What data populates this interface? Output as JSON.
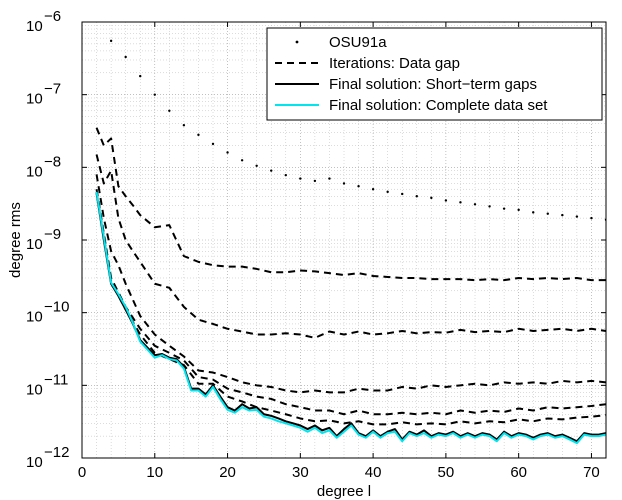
{
  "chart_data": {
    "type": "line",
    "title": "",
    "xlabel": "degree  l",
    "ylabel": "degree rms",
    "xlim": [
      0,
      72
    ],
    "ylim": [
      1e-12,
      1e-06
    ],
    "yscale": "log",
    "grid": true,
    "legend_position": "top-right",
    "x_ticks": [
      0,
      10,
      20,
      30,
      40,
      50,
      60,
      70
    ],
    "y_ticks": [
      {
        "value": 1e-12,
        "base": "10",
        "exp": "−12"
      },
      {
        "value": 1e-11,
        "base": "10",
        "exp": "−11"
      },
      {
        "value": 1e-10,
        "base": "10",
        "exp": "−10"
      },
      {
        "value": 1e-09,
        "base": "10",
        "exp": "−9"
      },
      {
        "value": 1e-08,
        "base": "10",
        "exp": "−8"
      },
      {
        "value": 1e-07,
        "base": "10",
        "exp": "−7"
      },
      {
        "value": 1e-06,
        "base": "10",
        "exp": "−6"
      }
    ],
    "series": [
      {
        "name": "OSU91a",
        "style": "dotted",
        "color": "#000000",
        "x": [
          4,
          6,
          8,
          10,
          12,
          14,
          16,
          18,
          20,
          22,
          24,
          26,
          28,
          30,
          32,
          34,
          36,
          38,
          40,
          42,
          44,
          46,
          48,
          50,
          52,
          54,
          56,
          58,
          60,
          62,
          64,
          66,
          68,
          70,
          72
        ],
        "y": [
          5.5e-07,
          3.3e-07,
          1.8e-07,
          1e-07,
          6e-08,
          3.8e-08,
          2.8e-08,
          2.1e-08,
          1.6e-08,
          1.25e-08,
          1.05e-08,
          9e-09,
          7.8e-09,
          7e-09,
          6.5e-09,
          7e-09,
          6e-09,
          5.5e-09,
          5e-09,
          4.6e-09,
          4.3e-09,
          4e-09,
          3.8e-09,
          3.5e-09,
          3.3e-09,
          3.1e-09,
          2.9e-09,
          2.7e-09,
          2.6e-09,
          2.4e-09,
          2.3e-09,
          2.2e-09,
          2.1e-09,
          2e-09,
          1.9e-09
        ]
      },
      {
        "name": "Iterations: Data gap",
        "style": "dashed",
        "color": "#000000",
        "x": [
          2,
          3,
          4,
          5,
          6,
          7,
          8,
          10,
          12,
          14,
          16,
          18,
          20,
          22,
          24,
          26,
          28,
          30,
          32,
          34,
          36,
          38,
          40,
          42,
          44,
          46,
          48,
          50,
          52,
          54,
          56,
          58,
          60,
          62,
          64,
          66,
          68,
          70,
          72
        ],
        "y": [
          3.5e-08,
          2e-08,
          2.5e-08,
          5.5e-09,
          4e-09,
          3e-09,
          2.2e-09,
          1.5e-09,
          1.6e-09,
          6e-10,
          5e-10,
          4.5e-10,
          4.3e-10,
          4.3e-10,
          4e-10,
          3.6e-10,
          3.6e-10,
          3.8e-10,
          3.7e-10,
          3.5e-10,
          3.3e-10,
          3.5e-10,
          3.2e-10,
          3.1e-10,
          3e-10,
          3e-10,
          2.9e-10,
          2.9e-10,
          2.9e-10,
          2.8e-10,
          2.9e-10,
          2.8e-10,
          3e-10,
          2.9e-10,
          3e-10,
          2.9e-10,
          3e-10,
          2.8e-10,
          2.8e-10
        ]
      },
      {
        "name": "",
        "style": "dashed",
        "color": "#000000",
        "x": [
          2,
          3,
          4,
          5,
          6,
          7,
          8,
          10,
          12,
          14,
          16,
          18,
          20,
          22,
          24,
          26,
          28,
          30,
          32,
          34,
          36,
          38,
          40,
          42,
          44,
          46,
          48,
          50,
          52,
          54,
          56,
          58,
          60,
          62,
          64,
          66,
          68,
          70,
          72
        ],
        "y": [
          1.5e-08,
          6e-09,
          9e-09,
          2e-09,
          1e-09,
          7e-10,
          5e-10,
          2.5e-10,
          2.2e-10,
          1.2e-10,
          8e-11,
          7e-11,
          6e-11,
          5.5e-11,
          5e-11,
          5e-11,
          5.2e-11,
          5e-11,
          4.5e-11,
          5.5e-11,
          5e-11,
          5.5e-11,
          5e-11,
          5.2e-11,
          5.6e-11,
          5.2e-11,
          5.4e-11,
          5.3e-11,
          5.8e-11,
          5.4e-11,
          5.6e-11,
          5.4e-11,
          6e-11,
          5.6e-11,
          5.8e-11,
          6e-11,
          5.6e-11,
          6e-11,
          5.6e-11
        ]
      },
      {
        "name": "",
        "style": "dashed",
        "color": "#000000",
        "x": [
          2,
          3,
          4,
          5,
          6,
          7,
          8,
          10,
          12,
          14,
          16,
          18,
          20,
          22,
          24,
          26,
          28,
          30,
          32,
          34,
          36,
          38,
          40,
          42,
          44,
          46,
          48,
          50,
          52,
          54,
          56,
          58,
          60,
          62,
          64,
          66,
          68,
          70,
          72
        ],
        "y": [
          8e-09,
          2e-09,
          7e-10,
          4.5e-10,
          2.5e-10,
          1.5e-10,
          9e-11,
          5e-11,
          3.5e-11,
          2.5e-11,
          1.6e-11,
          1.5e-11,
          1.3e-11,
          1.1e-11,
          1e-11,
          9.5e-12,
          8.5e-12,
          8e-12,
          8.5e-12,
          8e-12,
          8e-12,
          9e-12,
          8.5e-12,
          8.5e-12,
          9.5e-12,
          9e-12,
          1e-11,
          9.5e-12,
          1e-11,
          1.05e-11,
          1e-11,
          1.1e-11,
          1.05e-11,
          1.1e-11,
          1.05e-11,
          1.15e-11,
          1.1e-11,
          1.15e-11,
          1.1e-11
        ]
      },
      {
        "name": "",
        "style": "dashed",
        "color": "#000000",
        "x": [
          2,
          4,
          6,
          8,
          10,
          12,
          14,
          16,
          18,
          20,
          22,
          24,
          26,
          28,
          30,
          32,
          34,
          36,
          38,
          40,
          42,
          44,
          46,
          48,
          50,
          52,
          54,
          56,
          58,
          60,
          62,
          64,
          66,
          68,
          70,
          72
        ],
        "y": [
          5e-09,
          3e-10,
          1.2e-10,
          6e-11,
          3.5e-11,
          2.8e-11,
          2.2e-11,
          1.3e-11,
          1.2e-11,
          9e-12,
          8e-12,
          7e-12,
          6.5e-12,
          5.5e-12,
          5e-12,
          4.5e-12,
          4.5e-12,
          4e-12,
          4.5e-12,
          4e-12,
          4e-12,
          4.2e-12,
          4e-12,
          4.2e-12,
          4e-12,
          4.5e-12,
          4.2e-12,
          4.5e-12,
          4.3e-12,
          4.8e-12,
          4.5e-12,
          5e-12,
          4.8e-12,
          5e-12,
          5.2e-12,
          5.5e-12
        ]
      },
      {
        "name": "",
        "style": "dashed",
        "color": "#000000",
        "x": [
          2,
          4,
          6,
          8,
          10,
          12,
          14,
          16,
          18,
          20,
          22,
          24,
          26,
          28,
          30,
          32,
          34,
          36,
          38,
          40,
          42,
          44,
          46,
          48,
          50,
          52,
          54,
          56,
          58,
          60,
          62,
          64,
          66,
          68,
          70,
          72
        ],
        "y": [
          4.6e-09,
          2.7e-10,
          1.1e-10,
          5e-11,
          2.8e-11,
          2.3e-11,
          1.9e-11,
          1.05e-11,
          1.05e-11,
          7e-12,
          6e-12,
          5e-12,
          4.5e-12,
          4e-12,
          3.5e-12,
          3.2e-12,
          3.3e-12,
          3e-12,
          3.2e-12,
          2.9e-12,
          2.9e-12,
          3.1e-12,
          2.9e-12,
          3e-12,
          2.9e-12,
          3.2e-12,
          3e-12,
          3.2e-12,
          3.1e-12,
          3.4e-12,
          3.2e-12,
          3.5e-12,
          3.4e-12,
          3.6e-12,
          3.7e-12,
          3.9e-12
        ]
      },
      {
        "name": "Final solution: Short−term gaps",
        "style": "solid",
        "color": "#000000",
        "x": [
          2,
          3,
          4,
          5,
          6,
          7,
          8,
          9,
          10,
          11,
          12,
          13,
          14,
          15,
          16,
          17,
          18,
          19,
          20,
          21,
          22,
          23,
          24,
          25,
          26,
          27,
          28,
          29,
          30,
          31,
          32,
          33,
          34,
          35,
          36,
          37,
          38,
          39,
          40,
          41,
          42,
          43,
          44,
          45,
          46,
          47,
          48,
          49,
          50,
          51,
          52,
          53,
          54,
          55,
          56,
          57,
          58,
          59,
          60,
          61,
          62,
          63,
          64,
          65,
          66,
          67,
          68,
          69,
          70,
          71,
          72
        ],
        "y": [
          4.4e-09,
          1e-09,
          2.5e-10,
          1.7e-10,
          1.1e-10,
          7e-11,
          4.2e-11,
          3.3e-11,
          2.6e-11,
          2.7e-11,
          2.4e-11,
          2.3e-11,
          1.8e-11,
          9e-12,
          9e-12,
          7.5e-12,
          1e-11,
          7e-12,
          5e-12,
          4.5e-12,
          5.5e-12,
          4.8e-12,
          5e-12,
          4e-12,
          3.8e-12,
          3.5e-12,
          3.2e-12,
          3e-12,
          2.8e-12,
          2.5e-12,
          2.8e-12,
          2.4e-12,
          2.6e-12,
          2e-12,
          2.5e-12,
          3e-12,
          2.2e-12,
          2e-12,
          2.4e-12,
          2e-12,
          2.3e-12,
          2.5e-12,
          1.8e-12,
          2.3e-12,
          2.1e-12,
          2.4e-12,
          2e-12,
          2.2e-12,
          2.1e-12,
          2.3e-12,
          2e-12,
          2.2e-12,
          2e-12,
          2.2e-12,
          2.1e-12,
          1.8e-12,
          2.3e-12,
          2e-12,
          2.2e-12,
          2.1e-12,
          1.9e-12,
          2.1e-12,
          2.2e-12,
          2e-12,
          2.1e-12,
          1.9e-12,
          1.7e-12,
          2.2e-12,
          2.1e-12,
          2.1e-12,
          2.2e-12
        ]
      },
      {
        "name": "Final solution: Complete data set",
        "style": "solid",
        "color": "#00e5ee",
        "x": [
          2,
          3,
          4,
          5,
          6,
          7,
          8,
          9,
          10,
          11,
          12,
          13,
          14,
          15,
          16,
          17,
          18,
          19,
          20,
          21,
          22,
          23,
          24,
          25,
          26,
          27,
          28,
          29,
          30,
          31,
          32,
          33,
          34,
          35,
          36,
          37,
          38,
          39,
          40,
          41,
          42,
          43,
          44,
          45,
          46,
          47,
          48,
          49,
          50,
          51,
          52,
          53,
          54,
          55,
          56,
          57,
          58,
          59,
          60,
          61,
          62,
          63,
          64,
          65,
          66,
          67,
          68,
          69,
          70,
          71,
          72
        ],
        "y": [
          4.6e-09,
          1.1e-09,
          2.6e-10,
          1.8e-10,
          1.2e-10,
          7.2e-11,
          4e-11,
          3.1e-11,
          2.4e-11,
          2.6e-11,
          2.3e-11,
          2.2e-11,
          1.7e-11,
          8.5e-12,
          8.5e-12,
          7e-12,
          9.5e-12,
          6.5e-12,
          4.6e-12,
          4.2e-12,
          5e-12,
          4.5e-12,
          4.6e-12,
          3.7e-12,
          3.5e-12,
          3.2e-12,
          3e-12,
          2.8e-12,
          2.6e-12,
          2.3e-12,
          2.6e-12,
          2.2e-12,
          2.4e-12,
          1.9e-12,
          2.3e-12,
          2.8e-12,
          2.1e-12,
          1.9e-12,
          2.3e-12,
          1.9e-12,
          2.2e-12,
          2.3e-12,
          1.7e-12,
          2.2e-12,
          2e-12,
          2.2e-12,
          1.9e-12,
          2.1e-12,
          2e-12,
          2.2e-12,
          1.9e-12,
          2.1e-12,
          1.9e-12,
          2.1e-12,
          2e-12,
          1.7e-12,
          2.2e-12,
          1.9e-12,
          2.1e-12,
          2e-12,
          1.8e-12,
          2e-12,
          2.1e-12,
          1.9e-12,
          2e-12,
          1.8e-12,
          1.6e-12,
          2.1e-12,
          2e-12,
          2e-12,
          2.1e-12
        ]
      }
    ],
    "legend": [
      {
        "label": "OSU91a",
        "style": "dotted",
        "color": "#000000"
      },
      {
        "label": "Iterations: Data gap",
        "style": "dashed",
        "color": "#000000"
      },
      {
        "label": "Final solution: Short−term gaps",
        "style": "solid",
        "color": "#000000"
      },
      {
        "label": "Final solution: Complete data set",
        "style": "solid",
        "color": "#00e5ee"
      }
    ]
  }
}
